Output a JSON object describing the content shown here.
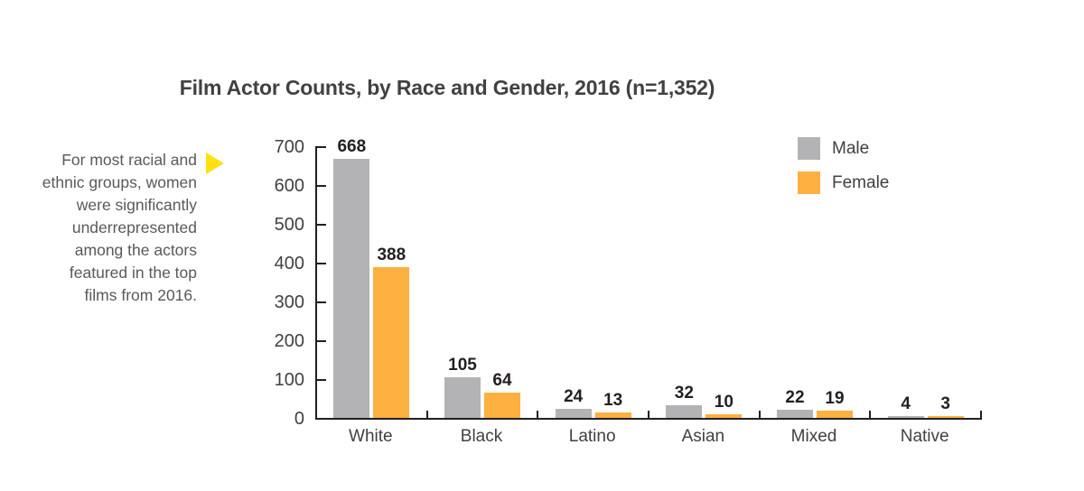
{
  "title": "Film Actor Counts, by Race and Gender, 2016 (n=1,352)",
  "annotation": {
    "lines": [
      "For most racial and",
      "ethnic groups, women",
      "were significantly",
      "underrepresented",
      "among the actors",
      "featured in the top",
      "films from 2016."
    ],
    "marker_icon": "right-pointing-triangle",
    "marker_color": "#ffe012"
  },
  "legend": {
    "position": "top-right",
    "items": [
      {
        "label": "Male",
        "color": "#b3b3b5"
      },
      {
        "label": "Female",
        "color": "#fbb040"
      }
    ]
  },
  "chart_data": {
    "type": "bar",
    "title": "Film Actor Counts, by Race and Gender, 2016 (n=1,352)",
    "categories": [
      "White",
      "Black",
      "Latino",
      "Asian",
      "Mixed",
      "Native"
    ],
    "series": [
      {
        "name": "Male",
        "color": "#b3b3b5",
        "values": [
          668,
          105,
          24,
          32,
          22,
          4
        ]
      },
      {
        "name": "Female",
        "color": "#fbb040",
        "values": [
          388,
          64,
          13,
          10,
          19,
          3
        ]
      }
    ],
    "xlabel": "",
    "ylabel": "",
    "ylim": [
      0,
      700
    ],
    "yticks": [
      0,
      100,
      200,
      300,
      400,
      500,
      600,
      700
    ],
    "grid": false,
    "legend_position": "top-right",
    "data_labels": true
  },
  "colors": {
    "title_text": "#414042",
    "annotation_text": "#59595c",
    "axis": "#231f20",
    "data_label_text": "#231f20",
    "male_bar": "#b3b3b5",
    "female_bar": "#fbb040",
    "pointer_yellow": "#ffe012",
    "background": "#ffffff"
  }
}
